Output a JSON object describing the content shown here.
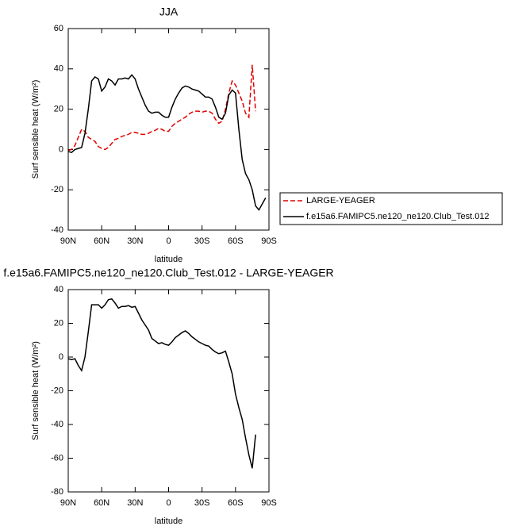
{
  "chart_data": [
    {
      "type": "line",
      "title": "JJA",
      "xlabel": "latitude",
      "ylabel": "Surf sensible heat (W/m²)",
      "x": [
        90,
        87,
        84,
        81,
        78,
        75,
        72,
        69,
        66,
        63,
        60,
        57,
        54,
        51,
        48,
        45,
        42,
        39,
        36,
        33,
        30,
        27,
        24,
        21,
        18,
        15,
        12,
        9,
        6,
        3,
        0,
        -3,
        -6,
        -9,
        -12,
        -15,
        -18,
        -21,
        -24,
        -27,
        -30,
        -33,
        -36,
        -39,
        -42,
        -45,
        -48,
        -51,
        -54,
        -57,
        -60,
        -63,
        -66,
        -69,
        -72,
        -75,
        -78,
        -81,
        -84,
        -87
      ],
      "xlim": [
        90,
        -90
      ],
      "xticks": [
        {
          "value": 90,
          "label": "90N"
        },
        {
          "value": 60,
          "label": "60N"
        },
        {
          "value": 30,
          "label": "30N"
        },
        0,
        {
          "value": -30,
          "label": "30S"
        },
        {
          "value": -60,
          "label": "60S"
        },
        {
          "value": -90,
          "label": "90S"
        }
      ],
      "ylim": [
        -40,
        60
      ],
      "yticks": [
        -40,
        -20,
        0,
        20,
        40,
        60
      ],
      "legend": "right",
      "series": [
        {
          "name": "LARGE-YEAGER",
          "color": "#e00000",
          "dash": true,
          "values": [
            -0.5,
            0,
            2,
            6,
            10,
            9,
            6,
            5,
            4,
            1.5,
            0.5,
            0,
            1,
            3,
            5,
            5.5,
            6.5,
            7,
            7.5,
            8.5,
            8.5,
            8,
            7.5,
            7.5,
            8,
            9,
            9.5,
            10.5,
            10,
            9,
            9,
            11.5,
            13,
            14,
            15,
            16,
            17.5,
            18.5,
            19,
            19,
            18.5,
            19,
            19,
            18,
            15,
            13,
            14,
            20,
            28,
            34,
            32,
            28,
            24,
            18,
            16,
            42,
            19,
            null,
            null,
            null
          ]
        },
        {
          "name": "f.e15a6.FAMIPC5.ne120_ne120.Club_Test.012",
          "color": "#000000",
          "dash": false,
          "values": [
            -1,
            -1.5,
            0,
            0.5,
            1,
            8,
            20,
            34,
            36,
            35,
            29,
            31,
            35,
            34,
            32,
            35,
            35,
            35.5,
            35,
            37,
            35,
            30,
            26,
            22,
            19,
            18,
            18.5,
            18.5,
            17,
            16,
            16,
            21,
            25,
            28,
            30.5,
            31.5,
            31,
            30,
            29.5,
            29,
            27.5,
            26,
            26,
            25,
            21,
            16,
            15,
            18,
            27,
            29.5,
            28,
            10,
            -5,
            -12,
            -15,
            -20,
            -28,
            -30,
            -27,
            -24
          ]
        }
      ]
    },
    {
      "type": "line",
      "title": "f.e15a6.FAMIPC5.ne120_ne120.Club_Test.012 - LARGE-YEAGER",
      "xlabel": "latitude",
      "ylabel": "Surf sensible heat (W/m²)",
      "x": [
        90,
        87,
        84,
        81,
        78,
        75,
        72,
        69,
        66,
        63,
        60,
        57,
        54,
        51,
        48,
        45,
        42,
        39,
        36,
        33,
        30,
        27,
        24,
        21,
        18,
        15,
        12,
        9,
        6,
        3,
        0,
        -3,
        -6,
        -9,
        -12,
        -15,
        -18,
        -21,
        -24,
        -27,
        -30,
        -33,
        -36,
        -39,
        -42,
        -45,
        -48,
        -51,
        -54,
        -57,
        -60,
        -63,
        -66,
        -69,
        -72,
        -75,
        -78
      ],
      "xlim": [
        90,
        -90
      ],
      "xticks": [
        {
          "value": 90,
          "label": "90N"
        },
        {
          "value": 60,
          "label": "60N"
        },
        {
          "value": 30,
          "label": "30N"
        },
        0,
        {
          "value": -30,
          "label": "30S"
        },
        {
          "value": -60,
          "label": "60S"
        },
        {
          "value": -90,
          "label": "90S"
        }
      ],
      "ylim": [
        -80,
        40
      ],
      "yticks": [
        -80,
        -60,
        -40,
        -20,
        0,
        20,
        40
      ],
      "series": [
        {
          "color": "#000000",
          "dash": false,
          "values": [
            -1,
            -1.5,
            -1,
            -5,
            -8,
            0,
            15,
            31,
            31,
            31,
            29,
            31,
            34,
            34.5,
            32,
            29,
            30,
            30,
            30.5,
            29.5,
            30,
            26,
            22,
            19,
            16,
            11,
            9.5,
            8,
            8.5,
            7.5,
            7,
            9,
            11.5,
            13,
            14.5,
            15.5,
            14,
            12,
            10.5,
            9,
            8,
            7,
            6.5,
            4.5,
            3,
            2,
            2.5,
            3.5,
            -3,
            -10,
            -22,
            -30,
            -37,
            -48,
            -58,
            -66,
            -46
          ]
        }
      ]
    }
  ]
}
